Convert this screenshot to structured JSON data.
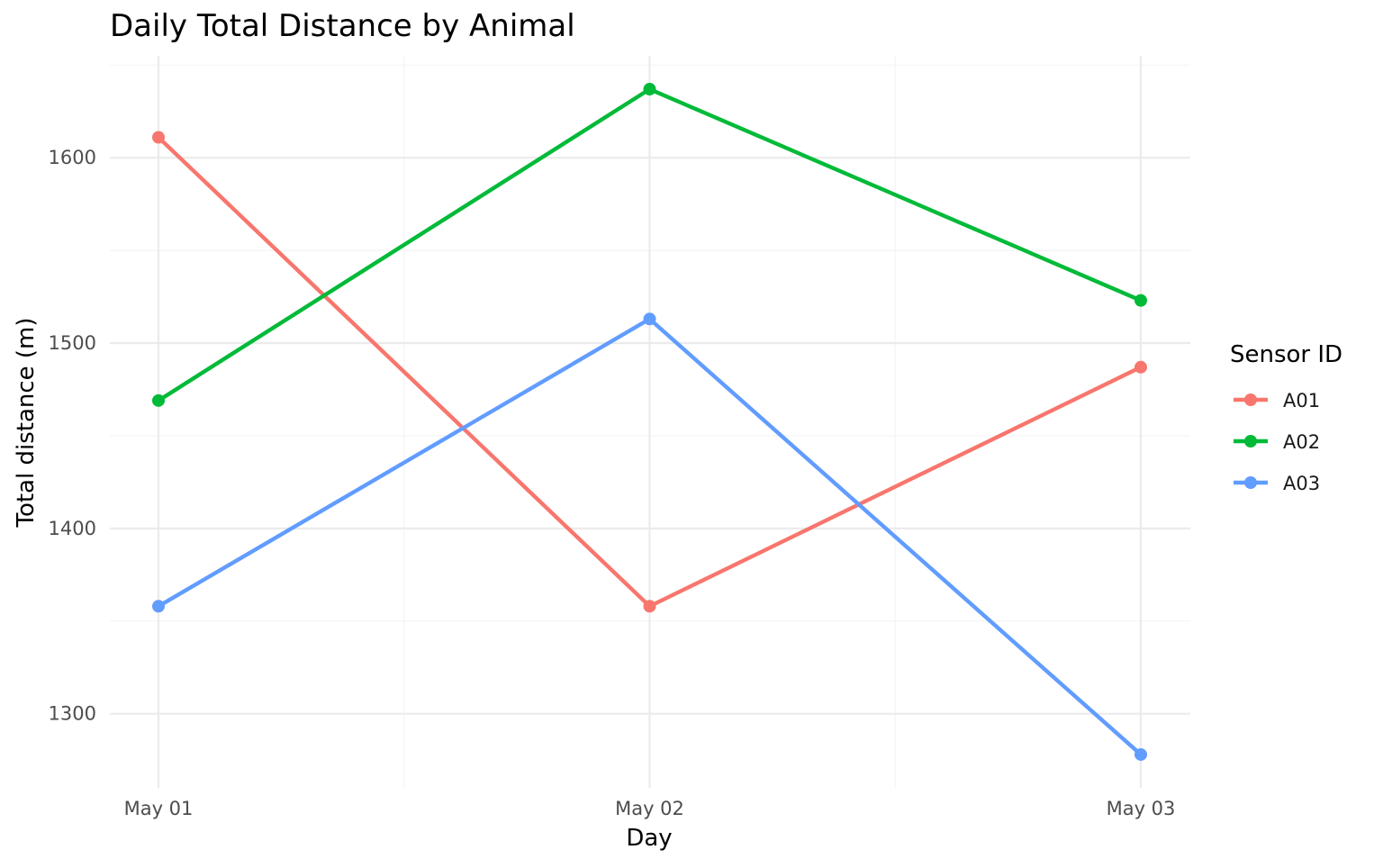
{
  "chart_data": {
    "type": "line",
    "title": "Daily Total Distance by Animal",
    "xlabel": "Day",
    "ylabel": "Total distance (m)",
    "categories": [
      "May 01",
      "May 02",
      "May 03"
    ],
    "x_ticks": [
      "May 01",
      "May 02",
      "May 03"
    ],
    "y_ticks": [
      1300,
      1400,
      1500,
      1600
    ],
    "ylim": [
      1260,
      1655
    ],
    "grid": true,
    "legend": {
      "title": "Sensor ID",
      "position": "right"
    },
    "series": [
      {
        "name": "A01",
        "color": "#F8766D",
        "values": [
          1611,
          1358,
          1487
        ]
      },
      {
        "name": "A02",
        "color": "#00BA38",
        "values": [
          1469,
          1637,
          1523
        ]
      },
      {
        "name": "A03",
        "color": "#619CFF",
        "values": [
          1358,
          1513,
          1278
        ]
      }
    ]
  }
}
